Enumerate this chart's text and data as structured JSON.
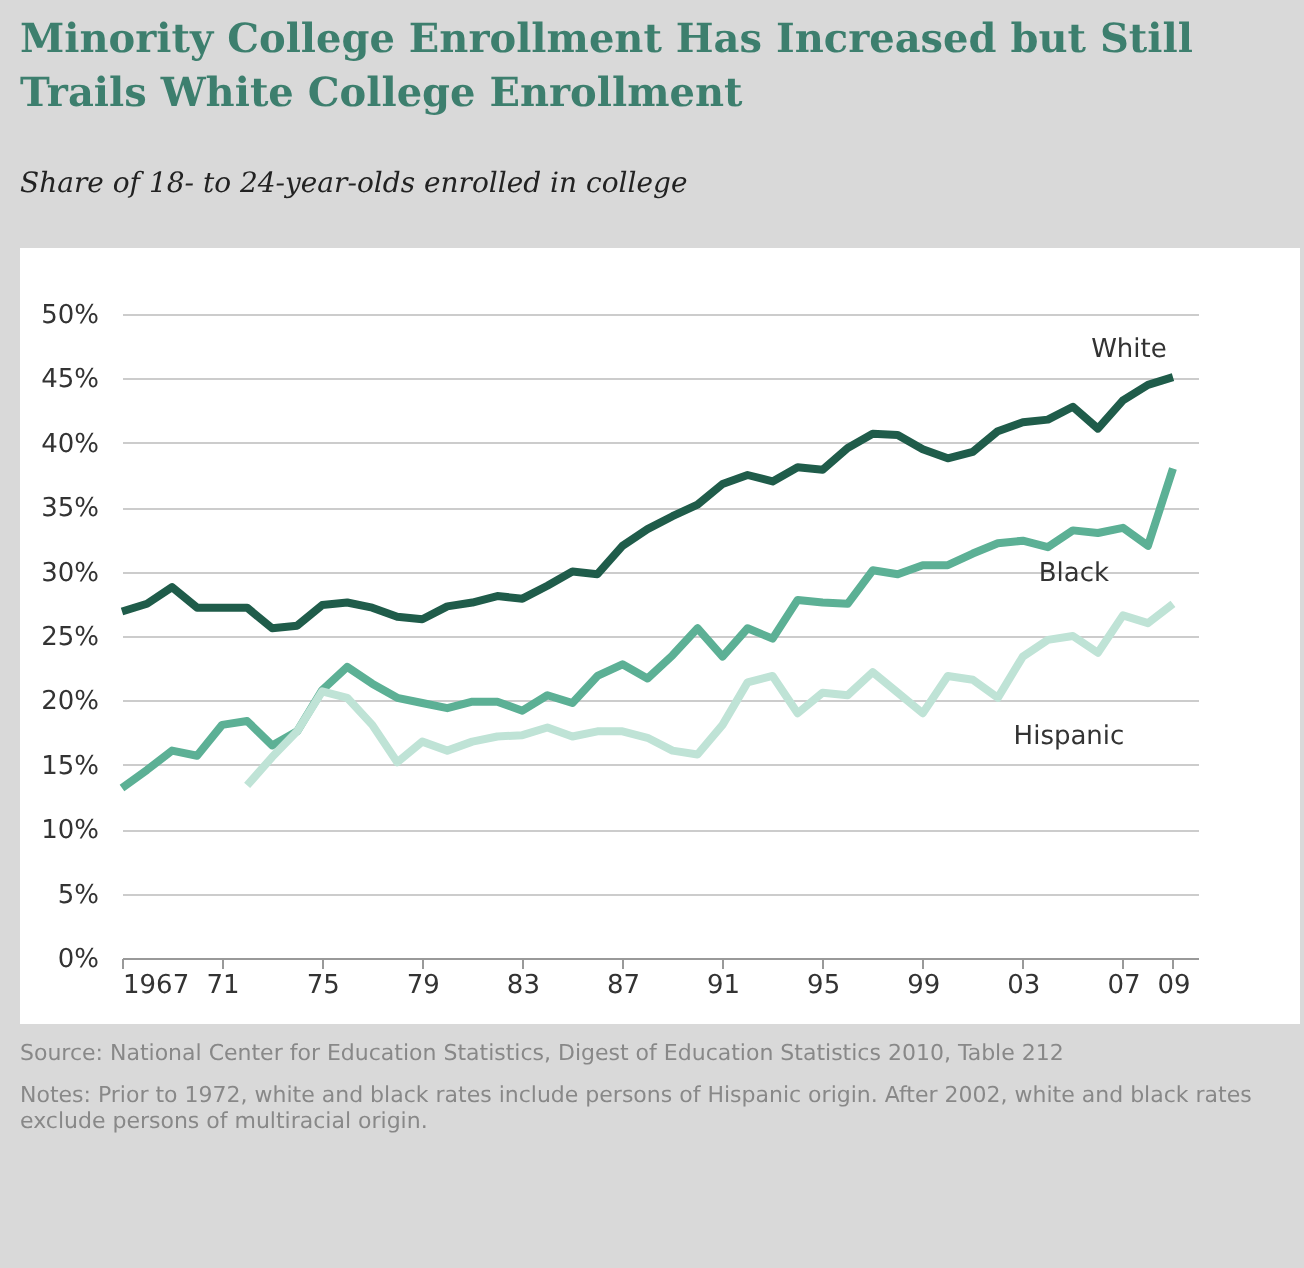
{
  "chart_data": {
    "type": "line",
    "title": "Minority College Enrollment Has Increased but Still Trails White College Enrollment",
    "subtitle": "Share of 18- to 24-year-olds enrolled in college",
    "annotations": [
      "Source: National Center for Education Statistics, Digest of Education Statistics 2010, Table 212",
      "Notes: Prior to 1972, white and black rates include persons of Hispanic origin. After 2002, white and black rates exclude persons of multiracial origin."
    ],
    "x": [
      1967,
      1968,
      1969,
      1970,
      1971,
      1972,
      1973,
      1974,
      1975,
      1976,
      1977,
      1978,
      1979,
      1980,
      1981,
      1982,
      1983,
      1984,
      1985,
      1986,
      1987,
      1988,
      1989,
      1990,
      1991,
      1992,
      1993,
      1994,
      1995,
      1996,
      1997,
      1998,
      1999,
      2000,
      2001,
      2002,
      2003,
      2004,
      2005,
      2006,
      2007,
      2008,
      2009
    ],
    "series": [
      {
        "name": "White",
        "color": "#1f5c4a",
        "values": [
          26.9,
          27.5,
          28.8,
          27.2,
          27.2,
          27.2,
          25.6,
          25.8,
          27.4,
          27.6,
          27.2,
          26.5,
          26.3,
          27.3,
          27.6,
          28.1,
          27.9,
          28.9,
          30.0,
          29.8,
          32.0,
          33.3,
          34.3,
          35.2,
          36.8,
          37.5,
          37.0,
          38.1,
          37.9,
          39.6,
          40.7,
          40.6,
          39.5,
          38.8,
          39.3,
          40.9,
          41.6,
          41.8,
          42.8,
          41.1,
          43.3,
          44.5,
          45.1
        ]
      },
      {
        "name": "Black",
        "color": "#5cb095",
        "values": [
          13.2,
          14.6,
          16.1,
          15.7,
          18.1,
          18.4,
          16.5,
          17.6,
          20.8,
          22.6,
          21.3,
          20.2,
          19.8,
          19.4,
          19.9,
          19.9,
          19.2,
          20.4,
          19.8,
          21.9,
          22.8,
          21.7,
          23.5,
          25.6,
          23.4,
          25.6,
          24.8,
          27.8,
          27.6,
          27.5,
          30.1,
          29.8,
          30.5,
          30.5,
          31.4,
          32.2,
          32.4,
          31.9,
          33.2,
          33.0,
          33.4,
          32.0,
          38.0
        ]
      },
      {
        "name": "Hispanic",
        "color": "#bfe3d6",
        "values": [
          null,
          null,
          null,
          null,
          null,
          13.4,
          15.6,
          17.6,
          20.7,
          20.2,
          18.1,
          15.2,
          16.8,
          16.1,
          16.8,
          17.2,
          17.3,
          17.9,
          17.2,
          17.6,
          17.6,
          17.1,
          16.1,
          15.8,
          18.1,
          21.4,
          21.9,
          19.0,
          20.6,
          20.4,
          22.2,
          20.6,
          19.0,
          21.9,
          21.6,
          20.2,
          23.4,
          24.7,
          25.0,
          23.7,
          26.6,
          26.0,
          27.5
        ]
      }
    ],
    "xlim": [
      1967,
      2010
    ],
    "xticks": [
      1967,
      {
        "value": 1971,
        "label": "71"
      },
      {
        "value": 1975,
        "label": "75"
      },
      {
        "value": 1979,
        "label": "79"
      },
      {
        "value": 1983,
        "label": "83"
      },
      {
        "value": 1987,
        "label": "87"
      },
      {
        "value": 1991,
        "label": "91"
      },
      {
        "value": 1995,
        "label": "95"
      },
      {
        "value": 1999,
        "label": "99"
      },
      {
        "value": 2003,
        "label": "03"
      },
      {
        "value": 2007,
        "label": "07"
      },
      {
        "value": 2009,
        "label": "09"
      }
    ],
    "ylim": [
      0,
      50
    ],
    "yticks": [
      {
        "value": 0,
        "label": "0%"
      },
      {
        "value": 5,
        "label": "5%"
      },
      {
        "value": 10,
        "label": "10%"
      },
      {
        "value": 15,
        "label": "15%"
      },
      {
        "value": 20,
        "label": "20%"
      },
      {
        "value": 25,
        "label": "25%"
      },
      {
        "value": 30,
        "label": "30%"
      },
      {
        "value": 35,
        "label": "35%"
      },
      {
        "value": 40,
        "label": "40%"
      },
      {
        "value": 45,
        "label": "45%"
      },
      {
        "value": 50,
        "label": "50%"
      }
    ],
    "grid": "y",
    "legend": false
  }
}
